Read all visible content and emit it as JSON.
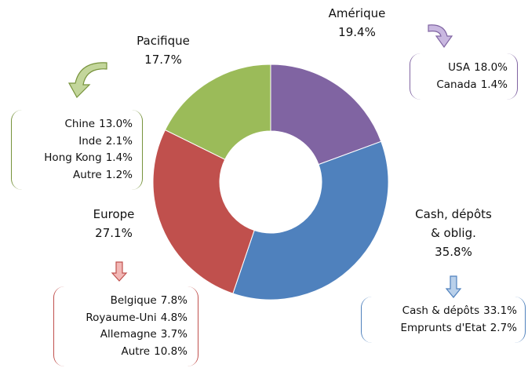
{
  "chart_data": {
    "type": "donut",
    "categories": [
      "Amérique",
      "Cash, dépôts & oblig.",
      "Europe",
      "Pacifique"
    ],
    "values": [
      19.4,
      35.8,
      27.1,
      17.7
    ],
    "value_labels": [
      "19.4%",
      "35.8%",
      "27.1%",
      "17.7%"
    ],
    "colors": [
      "#8064a2",
      "#4f81bd",
      "#c0504d",
      "#9bbb59"
    ],
    "breakdown": [
      [
        {
          "name": "USA",
          "value": 18.0,
          "label": "18.0%"
        },
        {
          "name": "Canada",
          "value": 1.4,
          "label": "1.4%"
        }
      ],
      [
        {
          "name": "Cash & dépôts",
          "value": 33.1,
          "label": "33.1%"
        },
        {
          "name": "Emprunts d'Etat",
          "value": 2.7,
          "label": "2.7%"
        }
      ],
      [
        {
          "name": "Belgique",
          "value": 7.8,
          "label": "7.8%"
        },
        {
          "name": "Royaume-Uni",
          "value": 4.8,
          "label": "4.8%"
        },
        {
          "name": "Allemagne",
          "value": 3.7,
          "label": "3.7%"
        },
        {
          "name": "Autre",
          "value": 10.8,
          "label": "10.8%"
        }
      ],
      [
        {
          "name": "Chine",
          "value": 13.0,
          "label": "13.0%"
        },
        {
          "name": "Inde",
          "value": 2.1,
          "label": "2.1%"
        },
        {
          "name": "Hong Kong",
          "value": 1.4,
          "label": "1.4%"
        },
        {
          "name": "Autre",
          "value": 1.2,
          "label": "1.2%"
        }
      ]
    ]
  }
}
